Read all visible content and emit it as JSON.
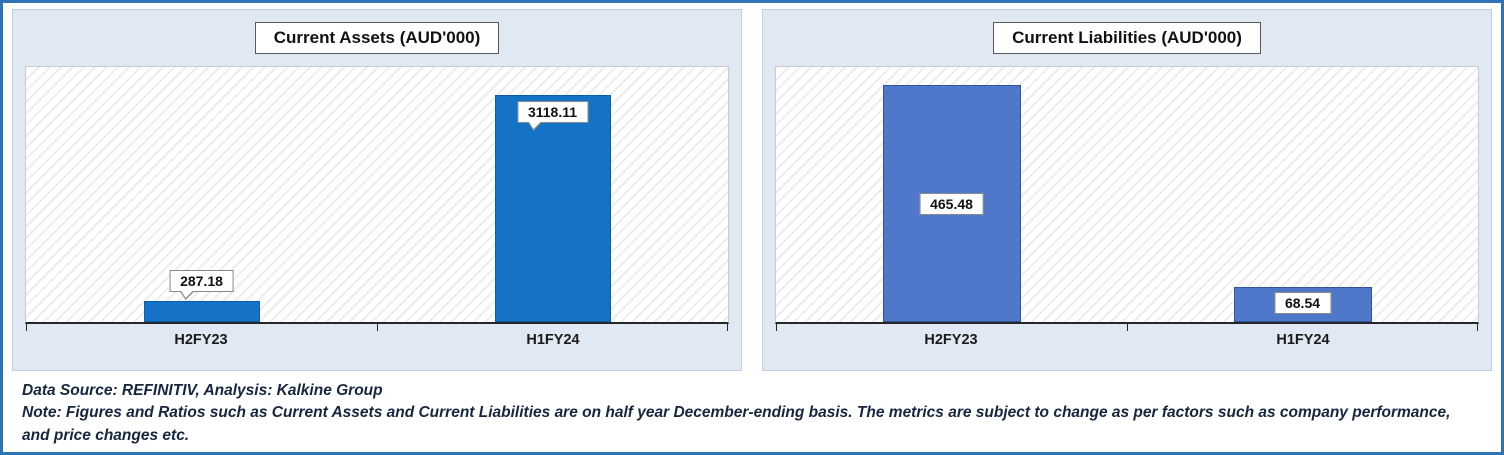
{
  "chart_data": [
    {
      "type": "bar",
      "title": "Current Assets (AUD'000)",
      "categories": [
        "H2FY23",
        "H1FY24"
      ],
      "values": [
        287.18,
        3118.11
      ],
      "value_labels": [
        "287.18",
        "3118.11"
      ],
      "xlabel": "",
      "ylabel": "",
      "ylim": [
        0,
        3500
      ],
      "grid": false,
      "legend": false,
      "bar_color": "#1473c6",
      "bar_border": "#0d5ca6"
    },
    {
      "type": "bar",
      "title": "Current Liabilities (AUD'000)",
      "categories": [
        "H2FY23",
        "H1FY24"
      ],
      "values": [
        465.48,
        68.54
      ],
      "value_labels": [
        "465.48",
        "68.54"
      ],
      "xlabel": "",
      "ylabel": "",
      "ylim": [
        0,
        500
      ],
      "grid": false,
      "legend": false,
      "bar_color": "#4f78cb",
      "bar_border": "#2f5597"
    }
  ],
  "footer": {
    "source": "Data Source: REFINITIV, Analysis: Kalkine Group",
    "note": "Note: Figures and Ratios such as Current Assets and Current Liabilities are on half year December-ending basis. The metrics are subject to change as per factors such as company performance, and price changes etc."
  },
  "colors": {
    "frame_border": "#2e74b5",
    "panel_bg": "#dfe8f3",
    "hatch_line": "#ededed",
    "axis": "#262626"
  }
}
